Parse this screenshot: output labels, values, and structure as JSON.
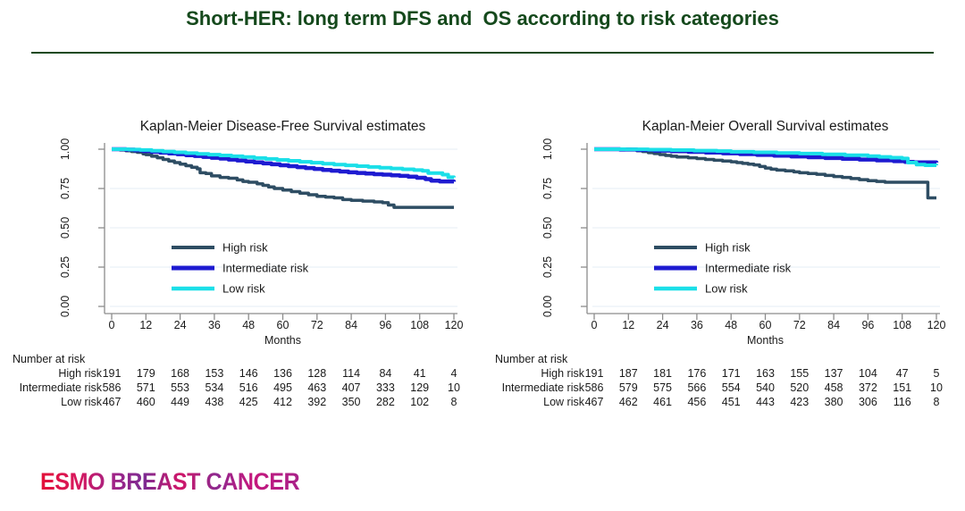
{
  "header": {
    "title": "Short-HER: long term DFS and  OS according to risk categories"
  },
  "palette": {
    "grid": "#e9f1f7",
    "axis": "#8c8c8c",
    "high_risk": "#2e4d63",
    "intermediate_risk": "#1e1bd1",
    "low_risk": "#1bdfe8"
  },
  "chart_data": [
    {
      "type": "line",
      "subtype": "kaplan-meier-step",
      "title": "Kaplan-Meier Disease-Free Survival estimates",
      "xlabel": "Months",
      "xlim": [
        0,
        120
      ],
      "ylim": [
        0,
        1
      ],
      "x_ticks": [
        0,
        12,
        24,
        36,
        48,
        60,
        72,
        84,
        96,
        108,
        120
      ],
      "y_ticks": [
        1.0,
        0.75,
        0.5,
        0.25,
        0.0
      ],
      "y_tick_labels": [
        "1.00",
        "0.75",
        "0.50",
        "0.25",
        "0.00"
      ],
      "grid": "horizontal",
      "legend_position": "inside-lower-left",
      "series": [
        {
          "name": "High risk",
          "color": "#2e4d63",
          "width": 3.5,
          "points": [
            [
              0,
              1.0
            ],
            [
              3,
              0.995
            ],
            [
              5,
              0.99
            ],
            [
              7,
              0.985
            ],
            [
              9,
              0.98
            ],
            [
              11,
              0.97
            ],
            [
              12,
              0.965
            ],
            [
              14,
              0.955
            ],
            [
              16,
              0.945
            ],
            [
              18,
              0.935
            ],
            [
              20,
              0.925
            ],
            [
              22,
              0.915
            ],
            [
              24,
              0.905
            ],
            [
              26,
              0.895
            ],
            [
              28,
              0.885
            ],
            [
              30,
              0.875
            ],
            [
              31,
              0.85
            ],
            [
              33,
              0.845
            ],
            [
              35,
              0.83
            ],
            [
              38,
              0.82
            ],
            [
              41,
              0.815
            ],
            [
              44,
              0.805
            ],
            [
              46,
              0.795
            ],
            [
              48,
              0.79
            ],
            [
              51,
              0.78
            ],
            [
              53,
              0.77
            ],
            [
              55,
              0.76
            ],
            [
              57,
              0.75
            ],
            [
              60,
              0.74
            ],
            [
              63,
              0.73
            ],
            [
              66,
              0.72
            ],
            [
              69,
              0.71
            ],
            [
              72,
              0.7
            ],
            [
              75,
              0.695
            ],
            [
              78,
              0.69
            ],
            [
              81,
              0.68
            ],
            [
              84,
              0.675
            ],
            [
              88,
              0.67
            ],
            [
              92,
              0.665
            ],
            [
              95,
              0.66
            ],
            [
              97,
              0.645
            ],
            [
              99,
              0.63
            ],
            [
              120,
              0.63
            ]
          ]
        },
        {
          "name": "Intermediate risk",
          "color": "#1e1bd1",
          "width": 4.5,
          "points": [
            [
              0,
              1.0
            ],
            [
              5,
              0.997
            ],
            [
              8,
              0.993
            ],
            [
              11,
              0.988
            ],
            [
              14,
              0.983
            ],
            [
              17,
              0.978
            ],
            [
              20,
              0.973
            ],
            [
              23,
              0.968
            ],
            [
              26,
              0.962
            ],
            [
              29,
              0.957
            ],
            [
              32,
              0.951
            ],
            [
              35,
              0.945
            ],
            [
              38,
              0.94
            ],
            [
              41,
              0.934
            ],
            [
              44,
              0.928
            ],
            [
              47,
              0.922
            ],
            [
              50,
              0.916
            ],
            [
              53,
              0.91
            ],
            [
              56,
              0.904
            ],
            [
              59,
              0.898
            ],
            [
              62,
              0.892
            ],
            [
              65,
              0.886
            ],
            [
              68,
              0.88
            ],
            [
              71,
              0.874
            ],
            [
              74,
              0.868
            ],
            [
              77,
              0.863
            ],
            [
              80,
              0.858
            ],
            [
              83,
              0.853
            ],
            [
              86,
              0.849
            ],
            [
              89,
              0.845
            ],
            [
              92,
              0.841
            ],
            [
              95,
              0.838
            ],
            [
              98,
              0.834
            ],
            [
              101,
              0.83
            ],
            [
              104,
              0.825
            ],
            [
              107,
              0.818
            ],
            [
              110,
              0.81
            ],
            [
              112,
              0.8
            ],
            [
              115,
              0.795
            ],
            [
              120,
              0.793
            ]
          ]
        },
        {
          "name": "Low risk",
          "color": "#1bdfe8",
          "width": 4,
          "points": [
            [
              0,
              1.0
            ],
            [
              6,
              0.998
            ],
            [
              10,
              0.995
            ],
            [
              14,
              0.99
            ],
            [
              18,
              0.985
            ],
            [
              22,
              0.98
            ],
            [
              26,
              0.975
            ],
            [
              30,
              0.97
            ],
            [
              34,
              0.965
            ],
            [
              38,
              0.96
            ],
            [
              42,
              0.955
            ],
            [
              46,
              0.95
            ],
            [
              50,
              0.944
            ],
            [
              54,
              0.938
            ],
            [
              58,
              0.932
            ],
            [
              62,
              0.926
            ],
            [
              66,
              0.92
            ],
            [
              70,
              0.914
            ],
            [
              74,
              0.908
            ],
            [
              78,
              0.902
            ],
            [
              82,
              0.897
            ],
            [
              86,
              0.892
            ],
            [
              90,
              0.887
            ],
            [
              94,
              0.882
            ],
            [
              98,
              0.877
            ],
            [
              102,
              0.872
            ],
            [
              106,
              0.867
            ],
            [
              109,
              0.862
            ],
            [
              111,
              0.848
            ],
            [
              116,
              0.838
            ],
            [
              118,
              0.822
            ],
            [
              120,
              0.82
            ]
          ]
        }
      ],
      "risk_table": {
        "heading": "Number at risk",
        "rows": [
          {
            "label": "High risk",
            "values": [
              191,
              179,
              168,
              153,
              146,
              136,
              128,
              114,
              84,
              41,
              4
            ]
          },
          {
            "label": "Intermediate risk",
            "values": [
              586,
              571,
              553,
              534,
              516,
              495,
              463,
              407,
              333,
              129,
              10
            ]
          },
          {
            "label": "Low risk",
            "values": [
              467,
              460,
              449,
              438,
              425,
              412,
              392,
              350,
              282,
              102,
              8
            ]
          }
        ]
      }
    },
    {
      "type": "line",
      "subtype": "kaplan-meier-step",
      "title": "Kaplan-Meier Overall Survival estimates",
      "xlabel": "Months",
      "xlim": [
        0,
        120
      ],
      "ylim": [
        0,
        1
      ],
      "x_ticks": [
        0,
        12,
        24,
        36,
        48,
        60,
        72,
        84,
        96,
        108,
        120
      ],
      "y_ticks": [
        1.0,
        0.75,
        0.5,
        0.25,
        0.0
      ],
      "y_tick_labels": [
        "1.00",
        "0.75",
        "0.50",
        "0.25",
        "0.00"
      ],
      "grid": "horizontal",
      "legend_position": "inside-lower-left",
      "series": [
        {
          "name": "High risk",
          "color": "#2e4d63",
          "width": 3.5,
          "points": [
            [
              0,
              1.0
            ],
            [
              13,
              0.997
            ],
            [
              15,
              0.99
            ],
            [
              17,
              0.985
            ],
            [
              19,
              0.978
            ],
            [
              21,
              0.972
            ],
            [
              23,
              0.966
            ],
            [
              25,
              0.96
            ],
            [
              27,
              0.955
            ],
            [
              29,
              0.95
            ],
            [
              33,
              0.945
            ],
            [
              36,
              0.94
            ],
            [
              39,
              0.935
            ],
            [
              42,
              0.93
            ],
            [
              45,
              0.925
            ],
            [
              48,
              0.92
            ],
            [
              50,
              0.915
            ],
            [
              52,
              0.91
            ],
            [
              54,
              0.905
            ],
            [
              56,
              0.9
            ],
            [
              58,
              0.89
            ],
            [
              60,
              0.88
            ],
            [
              62,
              0.873
            ],
            [
              64,
              0.867
            ],
            [
              67,
              0.862
            ],
            [
              70,
              0.856
            ],
            [
              72,
              0.85
            ],
            [
              75,
              0.845
            ],
            [
              78,
              0.84
            ],
            [
              81,
              0.833
            ],
            [
              84,
              0.826
            ],
            [
              87,
              0.82
            ],
            [
              90,
              0.813
            ],
            [
              93,
              0.806
            ],
            [
              96,
              0.8
            ],
            [
              99,
              0.795
            ],
            [
              102,
              0.79
            ],
            [
              116,
              0.79
            ],
            [
              117,
              0.69
            ],
            [
              120,
              0.69
            ]
          ]
        },
        {
          "name": "Intermediate risk",
          "color": "#1e1bd1",
          "width": 4.5,
          "points": [
            [
              0,
              1.0
            ],
            [
              9,
              0.998
            ],
            [
              15,
              0.995
            ],
            [
              21,
              0.991
            ],
            [
              27,
              0.987
            ],
            [
              33,
              0.983
            ],
            [
              39,
              0.979
            ],
            [
              45,
              0.974
            ],
            [
              51,
              0.969
            ],
            [
              57,
              0.964
            ],
            [
              63,
              0.959
            ],
            [
              69,
              0.954
            ],
            [
              75,
              0.949
            ],
            [
              81,
              0.944
            ],
            [
              87,
              0.939
            ],
            [
              93,
              0.934
            ],
            [
              99,
              0.929
            ],
            [
              105,
              0.924
            ],
            [
              109,
              0.919
            ],
            [
              112,
              0.916
            ],
            [
              120,
              0.915
            ]
          ]
        },
        {
          "name": "Low risk",
          "color": "#1bdfe8",
          "width": 4,
          "points": [
            [
              0,
              1.0
            ],
            [
              11,
              0.999
            ],
            [
              19,
              0.997
            ],
            [
              27,
              0.994
            ],
            [
              35,
              0.991
            ],
            [
              43,
              0.988
            ],
            [
              48,
              0.984
            ],
            [
              56,
              0.98
            ],
            [
              64,
              0.976
            ],
            [
              72,
              0.972
            ],
            [
              80,
              0.967
            ],
            [
              88,
              0.962
            ],
            [
              96,
              0.956
            ],
            [
              100,
              0.951
            ],
            [
              104,
              0.946
            ],
            [
              108,
              0.941
            ],
            [
              110,
              0.915
            ],
            [
              113,
              0.902
            ],
            [
              116,
              0.898
            ],
            [
              120,
              0.897
            ]
          ]
        }
      ],
      "risk_table": {
        "heading": "Number at risk",
        "rows": [
          {
            "label": "High risk",
            "values": [
              191,
              187,
              181,
              176,
              171,
              163,
              155,
              137,
              104,
              47,
              5
            ]
          },
          {
            "label": "Intermediate risk",
            "values": [
              586,
              579,
              575,
              566,
              554,
              540,
              520,
              458,
              372,
              151,
              10
            ]
          },
          {
            "label": "Low risk",
            "values": [
              467,
              462,
              461,
              456,
              451,
              443,
              423,
              380,
              306,
              116,
              8
            ]
          }
        ]
      }
    }
  ],
  "footer": {
    "logo": "ESMO BREAST CANCER"
  }
}
